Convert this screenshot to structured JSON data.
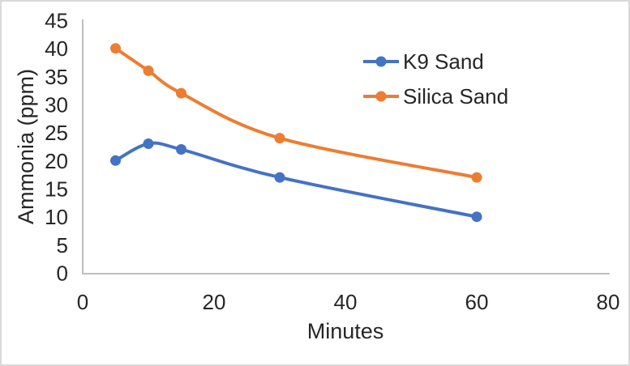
{
  "chart_data": {
    "type": "line",
    "title": "",
    "x": [
      5,
      10,
      15,
      30,
      60
    ],
    "series": [
      {
        "name": "K9 Sand",
        "values": [
          20,
          23,
          22,
          17,
          10
        ],
        "color": "#4472C4"
      },
      {
        "name": "Silica Sand",
        "values": [
          40,
          36,
          32,
          24,
          17
        ],
        "color": "#ED7D31"
      }
    ],
    "xlabel": "Minutes",
    "ylabel": "Ammonia (ppm)",
    "xlim": [
      0,
      80
    ],
    "ylim": [
      0,
      45
    ],
    "xticks": [
      0,
      20,
      40,
      60,
      80
    ],
    "yticks": [
      0,
      5,
      10,
      15,
      20,
      25,
      30,
      35,
      40,
      45
    ],
    "grid": false,
    "smooth": true,
    "markers": true,
    "legend_position": "inside-top-right",
    "colors": {
      "text": "#262626",
      "axis_line": "#BFBFBF",
      "background": "#FFFFFF",
      "frame_border": "#D9D9D9"
    }
  }
}
